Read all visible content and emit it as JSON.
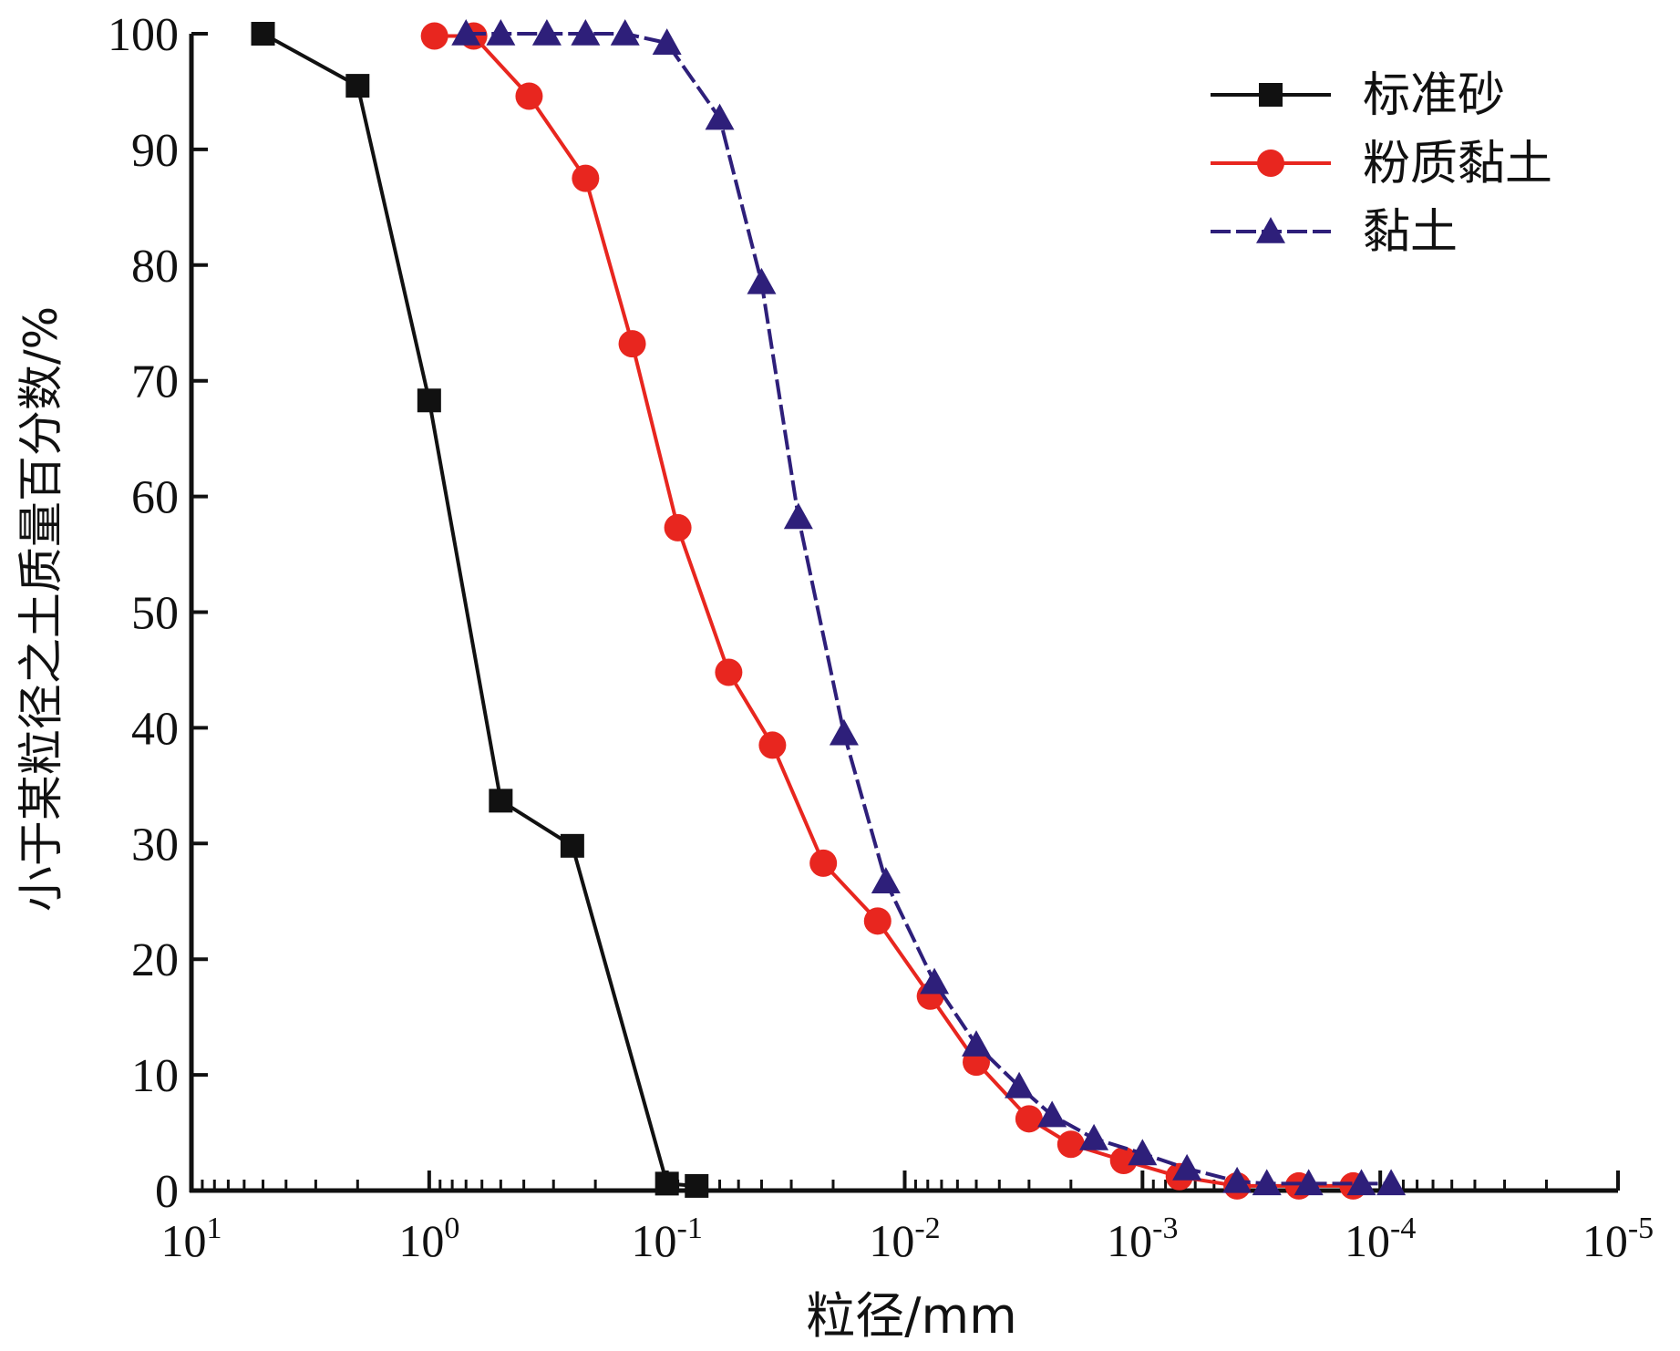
{
  "chart_data": {
    "type": "line",
    "xlabel": "粒径/mm",
    "ylabel": "小于某粒径之土质量百分数/%",
    "xscale": "log",
    "xaxis_direction": "reversed",
    "xlim": [
      10,
      1e-05
    ],
    "ylim": [
      0,
      100
    ],
    "xticks": [
      {
        "value": 10,
        "base": "10",
        "exp": "1"
      },
      {
        "value": 1,
        "base": "10",
        "exp": "0"
      },
      {
        "value": 0.1,
        "base": "10",
        "exp": "-1"
      },
      {
        "value": 0.01,
        "base": "10",
        "exp": "-2"
      },
      {
        "value": 0.001,
        "base": "10",
        "exp": "-3"
      },
      {
        "value": 0.0001,
        "base": "10",
        "exp": "-4"
      },
      {
        "value": 1e-05,
        "base": "10",
        "exp": "-5"
      }
    ],
    "yticks": [
      "0",
      "10",
      "20",
      "30",
      "40",
      "50",
      "60",
      "70",
      "80",
      "90",
      "100"
    ],
    "grid": false,
    "legend_position": "top-right",
    "series": [
      {
        "name": "标准砂",
        "color": "#111111",
        "marker": "square",
        "line_style": "solid",
        "x": [
          5,
          2,
          1,
          0.5,
          0.25,
          0.1,
          0.075
        ],
        "y": [
          100,
          95.5,
          68.3,
          33.7,
          29.8,
          0.6,
          0.4
        ]
      },
      {
        "name": "粉质黏土",
        "color": "#e8261f",
        "marker": "circle",
        "line_style": "solid",
        "x": [
          0.95,
          0.65,
          0.38,
          0.22,
          0.14,
          0.09,
          0.055,
          0.036,
          0.022,
          0.013,
          0.0078,
          0.005,
          0.003,
          0.002,
          0.0012,
          0.0007,
          0.0004,
          0.00022,
          0.00013
        ],
        "y": [
          99.8,
          99.8,
          94.6,
          87.5,
          73.2,
          57.3,
          44.8,
          38.5,
          28.3,
          23.3,
          16.8,
          11.1,
          6.2,
          4.0,
          2.6,
          1.2,
          0.4,
          0.4,
          0.4
        ]
      },
      {
        "name": "黏土",
        "color": "#2e1f7a",
        "marker": "triangle",
        "line_style": "dashed",
        "x": [
          0.7,
          0.5,
          0.32,
          0.22,
          0.15,
          0.1,
          0.06,
          0.04,
          0.028,
          0.018,
          0.012,
          0.0075,
          0.005,
          0.0033,
          0.0024,
          0.0016,
          0.001,
          0.00065,
          0.0004,
          0.0003,
          0.0002,
          0.00012,
          9e-05
        ],
        "y": [
          100,
          100,
          100,
          100,
          100,
          99.2,
          92.7,
          78.5,
          58.2,
          39.5,
          26.7,
          18.0,
          12.6,
          9.0,
          6.5,
          4.5,
          3.2,
          1.9,
          0.8,
          0.6,
          0.6,
          0.6,
          0.6
        ]
      }
    ]
  }
}
